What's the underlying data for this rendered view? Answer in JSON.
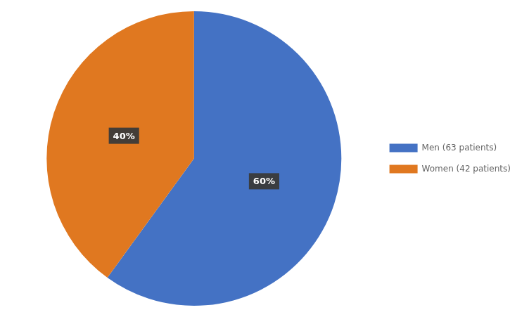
{
  "chart_data": {
    "type": "pie",
    "categories": [
      "Men (63 patients)",
      "Women (42 patients)"
    ],
    "values": [
      60,
      40
    ],
    "value_labels": [
      "60%",
      "40%"
    ],
    "data_labels": true,
    "colors": [
      "#4472C4",
      "#E07820"
    ],
    "legend": "right"
  }
}
